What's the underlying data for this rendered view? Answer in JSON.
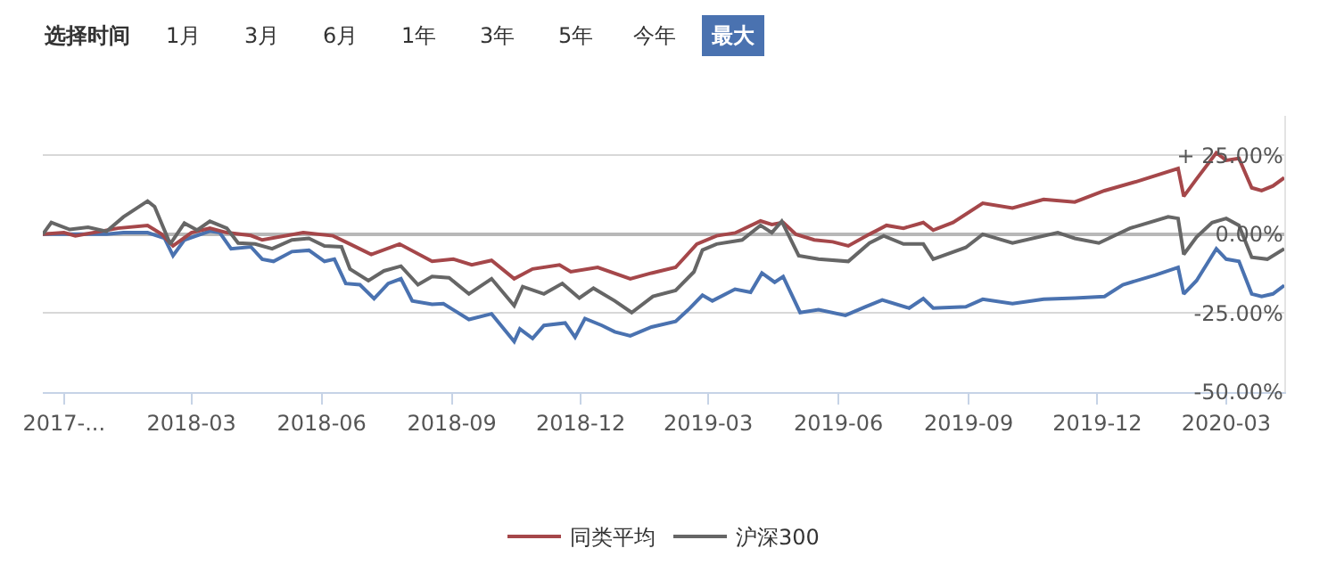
{
  "chart_data": {
    "type": "line",
    "annotations": [
      "选择时间",
      "1月",
      "3月",
      "6月",
      "1年",
      "3年",
      "5年",
      "今年",
      "最大"
    ],
    "xlim": [
      "2017-11-16",
      "2020-04-11"
    ],
    "xticks": [
      {
        "value": "2017-12-01",
        "label": "2017-..."
      },
      {
        "value": "2018-03-01",
        "label": "2018-03"
      },
      {
        "value": "2018-06-01",
        "label": "2018-06"
      },
      {
        "value": "2018-09-01",
        "label": "2018-09"
      },
      {
        "value": "2018-12-01",
        "label": "2018-12"
      },
      {
        "value": "2019-03-01",
        "label": "2019-03"
      },
      {
        "value": "2019-06-01",
        "label": "2019-06"
      },
      {
        "value": "2019-09-01",
        "label": "2019-09"
      },
      {
        "value": "2019-12-01",
        "label": "2019-12"
      },
      {
        "value": "2020-03-01",
        "label": "2020-03"
      }
    ],
    "ylim": [
      -50,
      37.5
    ],
    "yticks": [
      {
        "value": 25,
        "label": "+ 25.00%"
      },
      {
        "value": 0,
        "label": "0.00%"
      },
      {
        "value": -25,
        "label": "-25.00%"
      },
      {
        "value": -50,
        "label": "-50.00%"
      }
    ],
    "grid": "y",
    "legend": "bottom",
    "line_style": "solid",
    "series": [
      {
        "color": "#4a72b0",
        "x": [
          "2017-11-16",
          "2017-12-31",
          "2018-01-12",
          "2018-01-29",
          "2018-02-10",
          "2018-02-16",
          "2018-02-24",
          "2018-03-14",
          "2018-03-21",
          "2018-03-29",
          "2018-04-12",
          "2018-04-20",
          "2018-04-28",
          "2018-05-11",
          "2018-05-23",
          "2018-06-03",
          "2018-06-10",
          "2018-06-18",
          "2018-06-28",
          "2018-07-08",
          "2018-07-18",
          "2018-07-27",
          "2018-08-04",
          "2018-08-18",
          "2018-08-26",
          "2018-09-13",
          "2018-09-29",
          "2018-10-15",
          "2018-10-19",
          "2018-10-28",
          "2018-11-05",
          "2018-11-20",
          "2018-11-27",
          "2018-12-04",
          "2018-12-16",
          "2018-12-25",
          "2019-01-05",
          "2019-01-20",
          "2019-02-06",
          "2019-02-15",
          "2019-02-25",
          "2019-03-04",
          "2019-03-20",
          "2019-03-31",
          "2019-04-08",
          "2019-04-17",
          "2019-04-23",
          "2019-05-05",
          "2019-05-18",
          "2019-06-06",
          "2019-06-20",
          "2019-07-02",
          "2019-07-21",
          "2019-07-31",
          "2019-08-07",
          "2019-08-30",
          "2019-09-11",
          "2019-10-02",
          "2019-10-24",
          "2019-11-15",
          "2019-12-06",
          "2019-12-19",
          "2020-01-11",
          "2020-01-27",
          "2020-01-31",
          "2020-02-09",
          "2020-02-23",
          "2020-03-01",
          "2020-03-10",
          "2020-03-19",
          "2020-03-26",
          "2020-04-03",
          "2020-04-11"
        ],
        "values": [
          0,
          0,
          0.5,
          0.5,
          -1.3,
          -6.8,
          -1.8,
          1,
          0.5,
          -4.6,
          -4,
          -7.9,
          -8.6,
          -5.5,
          -5.1,
          -8.6,
          -7.9,
          -15.6,
          -16,
          -20.4,
          -15.6,
          -14.1,
          -21.1,
          -22.2,
          -22,
          -27,
          -25.2,
          -34,
          -30,
          -33,
          -28.9,
          -28.1,
          -32.6,
          -26.7,
          -28.9,
          -30.9,
          -32.2,
          -29.4,
          -27.6,
          -23.9,
          -19.3,
          -21.1,
          -17.4,
          -18.4,
          -12.3,
          -15.2,
          -13.4,
          -24.8,
          -23.9,
          -25.7,
          -23,
          -20.8,
          -23.4,
          -20.4,
          -23.4,
          -23,
          -20.6,
          -22,
          -20.6,
          -20.2,
          -19.7,
          -16,
          -12.9,
          -10.5,
          -18.9,
          -14.7,
          -4.6,
          -7.9,
          -8.6,
          -18.9,
          -19.7,
          -18.9,
          -16.2
        ]
      },
      {
        "name": "同类平均",
        "color": "#a5474a",
        "x": [
          "2017-11-16",
          "2017-12-01",
          "2017-12-09",
          "2018-01-08",
          "2018-01-29",
          "2018-02-08",
          "2018-02-16",
          "2018-03-01",
          "2018-03-14",
          "2018-03-26",
          "2018-04-12",
          "2018-04-20",
          "2018-05-19",
          "2018-06-09",
          "2018-06-21",
          "2018-07-06",
          "2018-07-26",
          "2018-08-18",
          "2018-09-02",
          "2018-09-15",
          "2018-09-29",
          "2018-10-15",
          "2018-10-28",
          "2018-11-16",
          "2018-11-24",
          "2018-12-13",
          "2019-01-05",
          "2019-01-20",
          "2019-02-06",
          "2019-02-21",
          "2019-03-07",
          "2019-03-20",
          "2019-04-07",
          "2019-04-15",
          "2019-04-23",
          "2019-05-02",
          "2019-05-15",
          "2019-05-28",
          "2019-06-08",
          "2019-06-23",
          "2019-07-05",
          "2019-07-17",
          "2019-07-31",
          "2019-08-07",
          "2019-08-21",
          "2019-09-11",
          "2019-10-02",
          "2019-10-24",
          "2019-11-15",
          "2019-12-06",
          "2019-12-28",
          "2020-01-27",
          "2020-01-31",
          "2020-02-09",
          "2020-02-23",
          "2020-03-01",
          "2020-03-10",
          "2020-03-19",
          "2020-03-26",
          "2020-04-03",
          "2020-04-11"
        ],
        "values": [
          0,
          0.5,
          -0.5,
          1.9,
          2.8,
          0,
          -3.7,
          0.5,
          1.9,
          0.5,
          -0.4,
          -1.8,
          0.5,
          -0.5,
          -3.1,
          -6.4,
          -3.1,
          -8.6,
          -7.9,
          -9.7,
          -8.3,
          -14.1,
          -11,
          -9.7,
          -11.9,
          -10.5,
          -14.1,
          -12.3,
          -10.5,
          -3.1,
          -0.5,
          0.4,
          4.2,
          3.1,
          3.7,
          0,
          -1.8,
          -2.4,
          -3.7,
          0,
          2.8,
          1.9,
          3.7,
          1.3,
          3.7,
          9.8,
          8.3,
          11,
          10.2,
          13.8,
          16.6,
          20.8,
          12,
          17.5,
          25.8,
          23.4,
          24,
          14.7,
          13.8,
          15.3,
          17.9
        ]
      },
      {
        "name": "沪深300",
        "color": "#666666",
        "x": [
          "2017-11-16",
          "2017-11-22",
          "2017-12-05",
          "2017-12-18",
          "2017-12-31",
          "2018-01-12",
          "2018-01-29",
          "2018-02-03",
          "2018-02-14",
          "2018-02-24",
          "2018-03-05",
          "2018-03-14",
          "2018-03-26",
          "2018-04-03",
          "2018-04-15",
          "2018-04-27",
          "2018-05-11",
          "2018-05-23",
          "2018-06-03",
          "2018-06-15",
          "2018-06-21",
          "2018-07-04",
          "2018-07-15",
          "2018-07-27",
          "2018-08-08",
          "2018-08-18",
          "2018-08-30",
          "2018-09-13",
          "2018-09-29",
          "2018-10-15",
          "2018-10-21",
          "2018-11-05",
          "2018-11-18",
          "2018-11-30",
          "2018-12-10",
          "2018-12-25",
          "2019-01-06",
          "2019-01-21",
          "2019-02-06",
          "2019-02-19",
          "2019-02-25",
          "2019-03-07",
          "2019-03-25",
          "2019-04-07",
          "2019-04-15",
          "2019-04-22",
          "2019-05-04",
          "2019-05-18",
          "2019-06-08",
          "2019-06-23",
          "2019-07-03",
          "2019-07-17",
          "2019-07-31",
          "2019-08-07",
          "2019-08-30",
          "2019-09-11",
          "2019-10-02",
          "2019-11-03",
          "2019-11-15",
          "2019-12-02",
          "2019-12-24",
          "2020-01-20",
          "2020-01-27",
          "2020-01-31",
          "2020-02-09",
          "2020-02-20",
          "2020-03-01",
          "2020-03-10",
          "2020-03-19",
          "2020-03-30",
          "2020-04-11"
        ],
        "values": [
          0,
          3.7,
          1.5,
          2.2,
          0.9,
          5.5,
          10.5,
          8.7,
          -3.1,
          3.5,
          1.3,
          4.1,
          1.9,
          -2.8,
          -3.1,
          -4.6,
          -1.8,
          -1.3,
          -3.7,
          -4,
          -11,
          -14.7,
          -11.6,
          -10.1,
          -16,
          -13.4,
          -13.8,
          -18.9,
          -14.1,
          -22.6,
          -16.6,
          -18.9,
          -15.6,
          -20.2,
          -17.1,
          -21.1,
          -24.8,
          -19.7,
          -17.8,
          -11.9,
          -5,
          -3.1,
          -1.8,
          2.8,
          0.5,
          4.1,
          -6.8,
          -7.9,
          -8.6,
          -2.8,
          -0.5,
          -3.1,
          -3.1,
          -7.9,
          -4.2,
          0,
          -2.8,
          0.5,
          -1.3,
          -2.8,
          1.9,
          5.5,
          5,
          -6.4,
          -0.9,
          3.7,
          5,
          2.8,
          -7.3,
          -7.9,
          -4.6
        ]
      }
    ]
  }
}
